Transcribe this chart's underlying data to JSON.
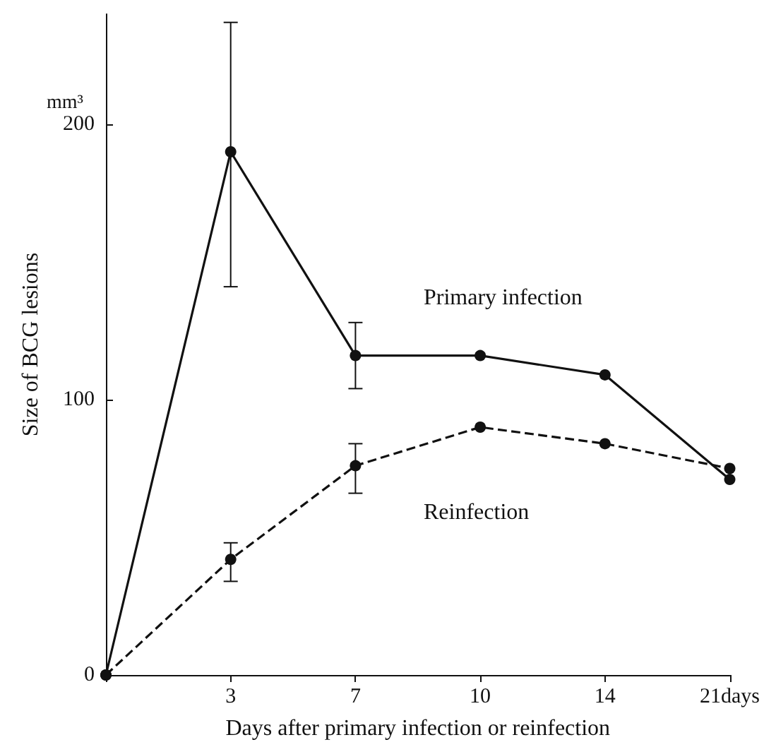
{
  "chart_data": {
    "type": "line",
    "xlabel": "Days after primary infection or reinfection",
    "ylabel": "Size of BCG lesions",
    "categories": [
      null,
      "3",
      "7",
      "10",
      "14",
      "21days"
    ],
    "series": [
      {
        "name": "Primary infection",
        "color": "#111111",
        "line_style": "solid",
        "values": [
          0,
          190,
          116,
          116,
          109,
          71
        ],
        "errors": [
          null,
          [
            141,
            237
          ],
          [
            104,
            128
          ],
          null,
          null,
          null
        ]
      },
      {
        "name": "Reinfection",
        "color": "#111111",
        "line_style": "dashed",
        "values": [
          0,
          42,
          76,
          90,
          84,
          75
        ],
        "errors": [
          null,
          [
            34,
            48
          ],
          [
            66,
            84
          ],
          null,
          null,
          null
        ]
      }
    ],
    "ylim": [
      0,
      240
    ],
    "yticks": [
      0,
      100,
      200
    ],
    "grid": false,
    "legend": false,
    "marker": "circle",
    "annotations": [
      "mm³"
    ]
  }
}
